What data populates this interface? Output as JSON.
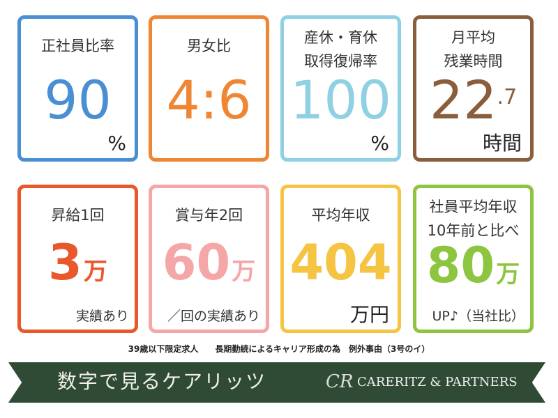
{
  "colors": {
    "blue": "#4a8fd2",
    "orange": "#ef8633",
    "lightblue": "#8fd0e2",
    "brown": "#8a5d3d",
    "red": "#e9582b",
    "pink": "#f5a6a6",
    "yellow": "#f6c443",
    "green": "#8dc540",
    "banner": "#2f4b36"
  },
  "cards": [
    {
      "label": "正社員比率",
      "value": "90",
      "unit": "%"
    },
    {
      "label": "男女比",
      "value": "4:6"
    },
    {
      "label1": "産休・育休",
      "label2": "取得復帰率",
      "value": "100",
      "unit": "%"
    },
    {
      "label1": "月平均",
      "label2": "残業時間",
      "value": "22",
      "decimal": ".7",
      "unit": "時間"
    },
    {
      "label": "昇給1回",
      "value": "3",
      "big_unit": "万",
      "sub": "実績あり"
    },
    {
      "label": "賞与年2回",
      "value": "60",
      "big_unit": "万",
      "sub": "／回の実績あり"
    },
    {
      "label": "平均年収",
      "value": "404",
      "unit": "万円"
    },
    {
      "label1": "社員平均年収",
      "label2": "10年前と比べ",
      "value": "80",
      "big_unit": "万",
      "sub": "UP♪（当社比）"
    }
  ],
  "note": "39歳以下限定求人　　長期勤続によるキャリア形成の為　例外事由（3号のイ）",
  "banner": {
    "title": "数字で見るケアリッツ",
    "logo_mark": "CR",
    "brand": "CARERITZ & PARTNERS"
  }
}
